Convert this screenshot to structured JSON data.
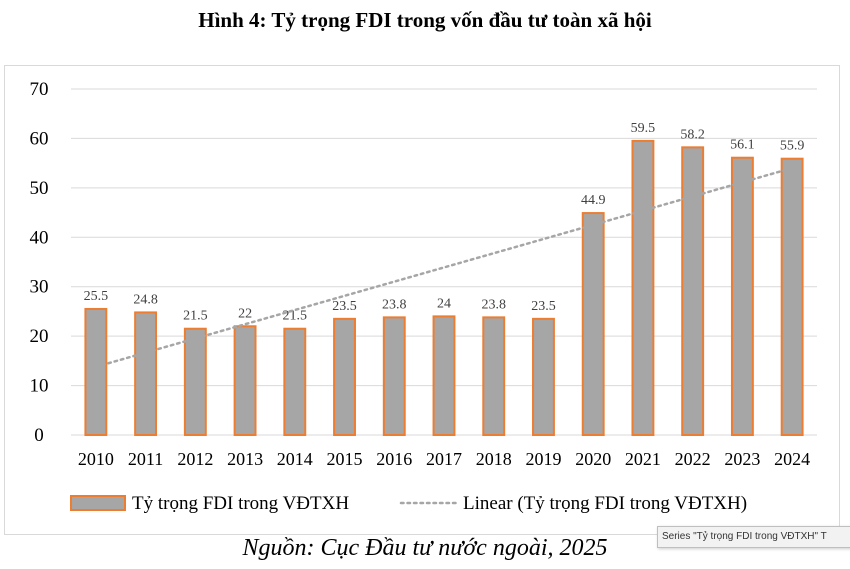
{
  "page": {
    "title": "Hình 4: Tỷ trọng FDI trong vốn đầu tư toàn xã hội",
    "source": "Nguồn: Cục Đầu tư nước ngoài, 2025",
    "tooltip": "Series \"Tỷ trọng FDI trong VĐTXH\" T"
  },
  "chart_data": {
    "type": "bar",
    "title": "Hình 4: Tỷ trọng FDI trong vốn đầu tư toàn xã hội",
    "categories": [
      "2010",
      "2011",
      "2012",
      "2013",
      "2014",
      "2015",
      "2016",
      "2017",
      "2018",
      "2019",
      "2020",
      "2021",
      "2022",
      "2023",
      "2024"
    ],
    "series": [
      {
        "name": "Tỷ trọng FDI trong VĐTXH",
        "values": [
          25.5,
          24.8,
          21.5,
          22,
          21.5,
          23.5,
          23.8,
          24,
          23.8,
          23.5,
          44.9,
          59.5,
          58.2,
          56.1,
          55.9
        ],
        "labels": [
          "25.5",
          "24.8",
          "21.5",
          "22",
          "21.5",
          "23.5",
          "23.8",
          "24",
          "23.8",
          "23.5",
          "44.9",
          "59.5",
          "58.2",
          "56.1",
          "55.9"
        ],
        "color": "#a6a6a6",
        "border_color": "#ed7d31"
      }
    ],
    "trendline": {
      "name": "Linear (Tỷ trọng FDI trong VĐTXH)",
      "type": "linear",
      "color": "#a6a6a6",
      "style": "dotted"
    },
    "yticks": [
      "0",
      "10",
      "20",
      "30",
      "40",
      "50",
      "60",
      "70"
    ],
    "ylim": [
      0,
      70
    ],
    "grid": true,
    "legend_position": "bottom",
    "xlabel": "",
    "ylabel": ""
  }
}
